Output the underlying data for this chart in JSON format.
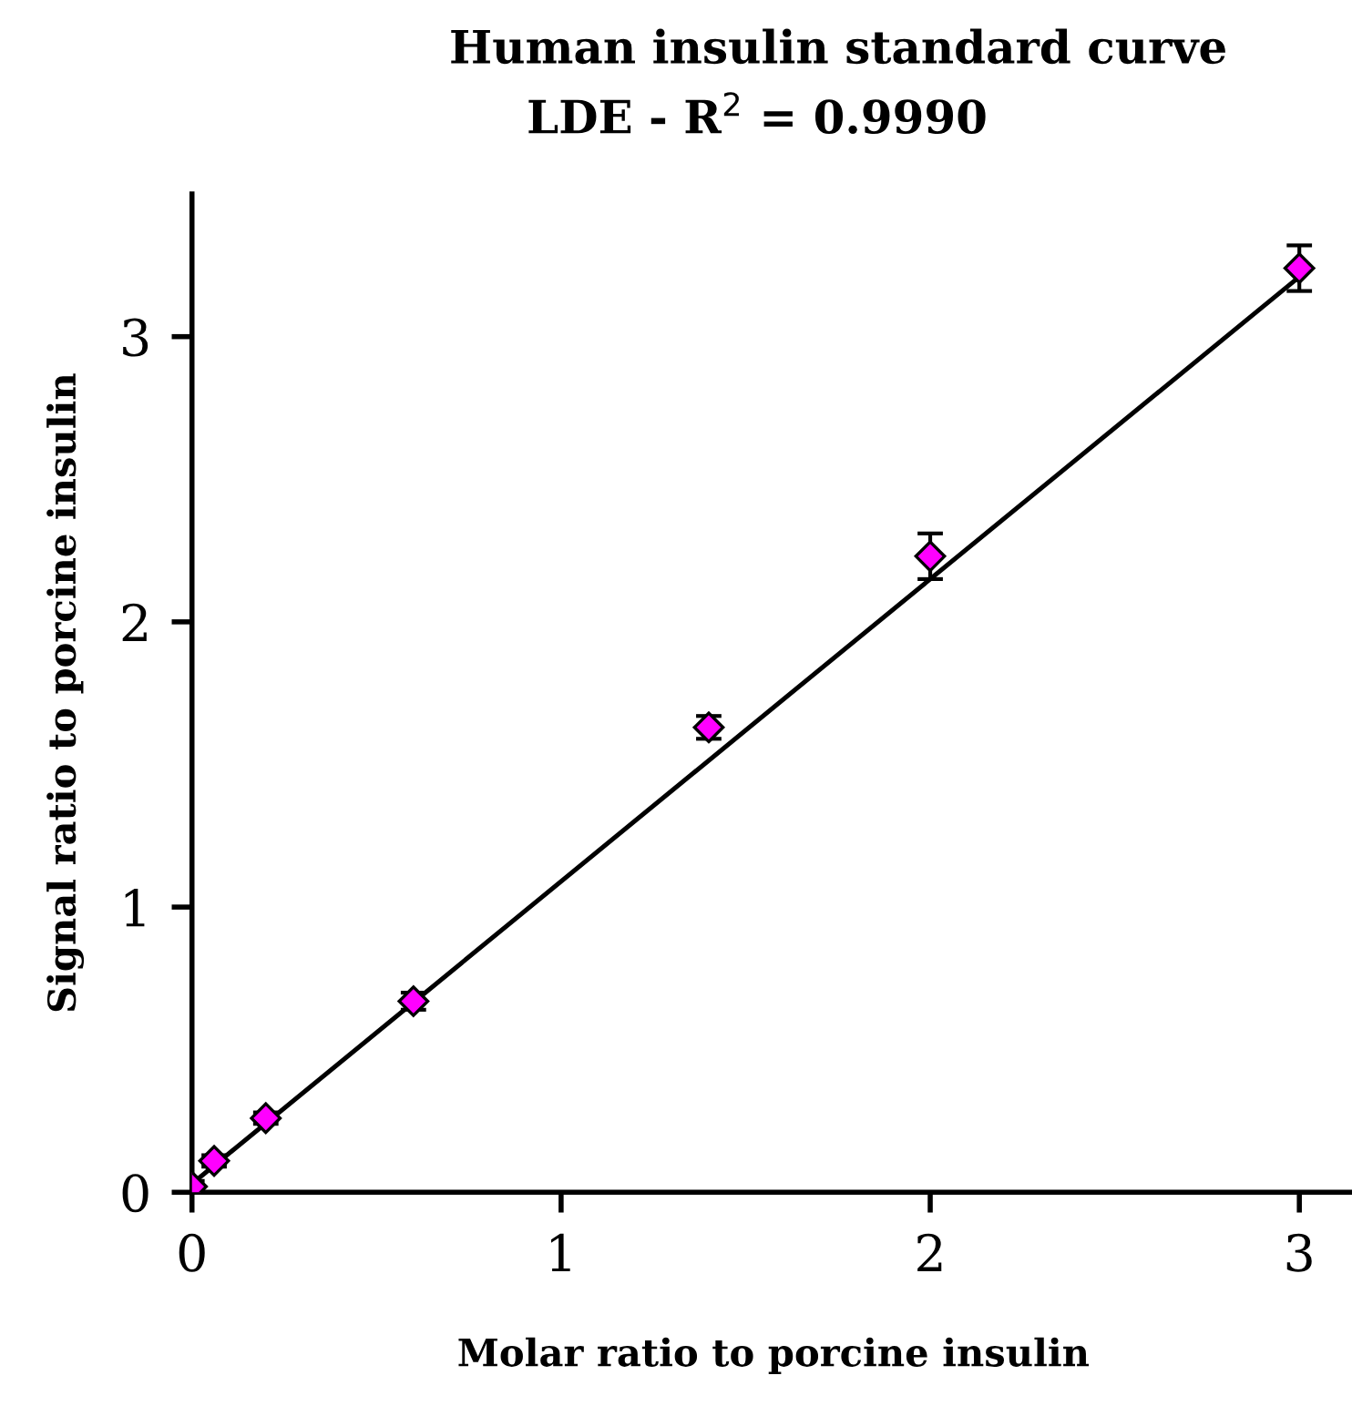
{
  "chart_data": {
    "type": "scatter",
    "title": "Human insulin standard curve",
    "subtitle": "LDE - R$^{2}$ = 0.9990",
    "xlabel": "Molar ratio to porcine insulin",
    "ylabel": "Signal ratio to porcine insulin",
    "series": [
      {
        "color": "#ff00ff",
        "x": [
          0,
          0.06,
          0.2,
          0.6,
          1.4,
          2.0,
          3.0
        ],
        "values": [
          0.02,
          0.11,
          0.26,
          0.67,
          1.63,
          2.23,
          3.24
        ],
        "errors": [
          0.02,
          0.02,
          0.02,
          0.03,
          0.04,
          0.08,
          0.08
        ],
        "marker": "diamond"
      },
      {
        "type": "line",
        "color": "#000000",
        "x": [
          0,
          3
        ],
        "values": [
          0.03,
          3.21
        ],
        "marker": "none",
        "line_style": "solid"
      }
    ],
    "xlim": [
      0,
      3.15
    ],
    "ylim": [
      0,
      3.5
    ],
    "xticks": [
      0,
      1,
      2,
      3
    ],
    "yticks": [
      0,
      1,
      2,
      3
    ],
    "grid": false,
    "legend": false
  }
}
